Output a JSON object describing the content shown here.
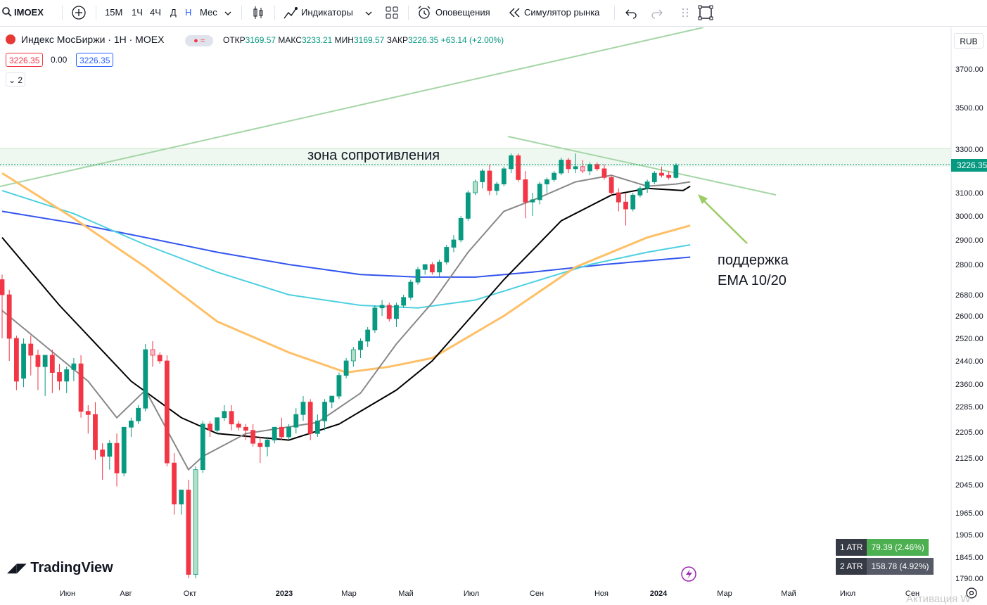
{
  "toolbar": {
    "symbol": "IMOEX",
    "intervals": [
      "15М",
      "1Ч",
      "4Ч",
      "Д",
      "Н",
      "Мес"
    ],
    "active_interval": "Н",
    "indicators_label": "Индикаторы",
    "alerts_label": "Оповещения",
    "replay_label": "Симулятор рынка"
  },
  "legend": {
    "title": "Индекс МосБиржи · 1Н · MOEX",
    "open_label": "ОТКР",
    "open": "3169.57",
    "high_label": "МАКС",
    "high": "3233.21",
    "low_label": "МИН",
    "low": "3169.57",
    "close_label": "ЗАКР",
    "close": "3226.35",
    "change": "+63.14 (+2.00%)",
    "bid": "3226.35",
    "spread": "0.00",
    "ask": "3226.35",
    "indicators_count": "2"
  },
  "currency": "RUB",
  "last_price_label": "3226.35",
  "colors": {
    "up": "#089981",
    "down": "#f23645",
    "up_hollow": "#b2dfc5",
    "ema10": "#888888",
    "ema20": "#000000",
    "ema50": "#ffbf66",
    "ema100": "#4dd0e1",
    "ema200": "#3355ee",
    "trend": "#a5d6a7"
  },
  "annotations": {
    "resistance": "зона сопротивления",
    "support_line1": "поддержка",
    "support_line2": "EMA 10/20"
  },
  "atr": [
    {
      "name": "1 ATR",
      "value": "79.39 (2.46%)"
    },
    {
      "name": "2 ATR",
      "value": "158.78 (4.92%)"
    }
  ],
  "brand": "TradingView",
  "watermark": "Активация W",
  "chart_data": {
    "type": "candlestick",
    "y_ticks": [
      "3700.00",
      "3500.00",
      "3300.00",
      "3100.00",
      "3000.00",
      "2900.00",
      "2800.00",
      "2680.00",
      "2600.00",
      "2520.00",
      "2440.00",
      "2360.00",
      "2285.00",
      "2205.00",
      "2125.00",
      "2045.00",
      "1965.00",
      "1905.00",
      "1845.00",
      "1790.00"
    ],
    "x_ticks": [
      "Июн",
      "Авг",
      "Окт",
      "2023",
      "Мар",
      "Май",
      "Июл",
      "Сен",
      "Ноя",
      "2024",
      "Мар",
      "Май",
      "Июл",
      "Сен"
    ],
    "candles": [
      [
        2740,
        2760,
        2520,
        2680
      ],
      [
        2680,
        2700,
        2440,
        2520
      ],
      [
        2520,
        2530,
        2340,
        2370
      ],
      [
        2380,
        2520,
        2350,
        2500
      ],
      [
        2500,
        2530,
        2390,
        2460
      ],
      [
        2460,
        2480,
        2340,
        2420
      ],
      [
        2420,
        2460,
        2320,
        2460
      ],
      [
        2460,
        2480,
        2330,
        2400
      ],
      [
        2400,
        2430,
        2340,
        2370
      ],
      [
        2370,
        2420,
        2330,
        2410
      ],
      [
        2410,
        2450,
        2370,
        2430
      ],
      [
        2430,
        2460,
        2250,
        2270
      ],
      [
        2270,
        2290,
        2200,
        2260
      ],
      [
        2260,
        2300,
        2120,
        2150
      ],
      [
        2150,
        2170,
        2060,
        2130
      ],
      [
        2130,
        2180,
        2090,
        2170
      ],
      [
        2170,
        2200,
        2040,
        2080
      ],
      [
        2080,
        2220,
        2070,
        2220
      ],
      [
        2220,
        2250,
        2190,
        2240
      ],
      [
        2240,
        2290,
        2230,
        2280
      ],
      [
        2280,
        2500,
        2270,
        2480
      ],
      [
        2480,
        2510,
        2420,
        2460
      ],
      [
        2460,
        2470,
        2430,
        2440
      ],
      [
        2440,
        2460,
        2100,
        2110
      ],
      [
        2110,
        2140,
        1960,
        1990
      ],
      [
        1990,
        2020,
        1960,
        2030
      ],
      [
        2030,
        2060,
        1790,
        1800
      ],
      [
        1800,
        2100,
        1790,
        2090
      ],
      [
        2090,
        2240,
        2080,
        2230
      ],
      [
        2230,
        2240,
        2190,
        2210
      ],
      [
        2210,
        2250,
        2200,
        2250
      ],
      [
        2250,
        2290,
        2240,
        2270
      ],
      [
        2270,
        2290,
        2210,
        2230
      ],
      [
        2230,
        2240,
        2210,
        2220
      ],
      [
        2220,
        2230,
        2180,
        2210
      ],
      [
        2210,
        2230,
        2160,
        2170
      ],
      [
        2170,
        2190,
        2110,
        2160
      ],
      [
        2160,
        2190,
        2130,
        2180
      ],
      [
        2180,
        2220,
        2170,
        2220
      ],
      [
        2220,
        2250,
        2180,
        2190
      ],
      [
        2190,
        2230,
        2180,
        2220
      ],
      [
        2220,
        2280,
        2200,
        2260
      ],
      [
        2260,
        2320,
        2240,
        2300
      ],
      [
        2300,
        2310,
        2180,
        2200
      ],
      [
        2200,
        2260,
        2190,
        2240
      ],
      [
        2240,
        2310,
        2210,
        2300
      ],
      [
        2300,
        2320,
        2280,
        2320
      ],
      [
        2320,
        2400,
        2310,
        2390
      ],
      [
        2390,
        2450,
        2380,
        2440
      ],
      [
        2440,
        2490,
        2420,
        2480
      ],
      [
        2480,
        2520,
        2450,
        2510
      ],
      [
        2510,
        2560,
        2490,
        2550
      ],
      [
        2550,
        2640,
        2540,
        2630
      ],
      [
        2630,
        2660,
        2600,
        2640
      ],
      [
        2640,
        2650,
        2580,
        2590
      ],
      [
        2590,
        2650,
        2560,
        2640
      ],
      [
        2640,
        2680,
        2630,
        2670
      ],
      [
        2670,
        2740,
        2660,
        2730
      ],
      [
        2730,
        2790,
        2720,
        2780
      ],
      [
        2780,
        2800,
        2760,
        2800
      ],
      [
        2800,
        2810,
        2760,
        2770
      ],
      [
        2770,
        2820,
        2750,
        2810
      ],
      [
        2810,
        2880,
        2800,
        2870
      ],
      [
        2870,
        2920,
        2850,
        2900
      ],
      [
        2900,
        3000,
        2890,
        2990
      ],
      [
        2990,
        3110,
        2980,
        3100
      ],
      [
        3100,
        3160,
        3090,
        3150
      ],
      [
        3150,
        3210,
        3120,
        3200
      ],
      [
        3200,
        3230,
        3090,
        3110
      ],
      [
        3110,
        3150,
        3090,
        3140
      ],
      [
        3140,
        3220,
        3130,
        3210
      ],
      [
        3210,
        3280,
        3190,
        3270
      ],
      [
        3270,
        3280,
        3150,
        3160
      ],
      [
        3160,
        3200,
        2990,
        3060
      ],
      [
        3060,
        3100,
        3000,
        3070
      ],
      [
        3070,
        3150,
        3050,
        3140
      ],
      [
        3140,
        3170,
        3100,
        3160
      ],
      [
        3160,
        3200,
        3150,
        3190
      ],
      [
        3190,
        3260,
        3180,
        3250
      ],
      [
        3250,
        3260,
        3190,
        3210
      ],
      [
        3210,
        3280,
        3190,
        3220
      ],
      [
        3220,
        3250,
        3190,
        3200
      ],
      [
        3200,
        3240,
        3180,
        3230
      ],
      [
        3230,
        3240,
        3200,
        3210
      ],
      [
        3210,
        3230,
        3160,
        3170
      ],
      [
        3170,
        3180,
        3090,
        3100
      ],
      [
        3100,
        3120,
        3020,
        3060
      ],
      [
        3060,
        3100,
        2960,
        3030
      ],
      [
        3030,
        3100,
        3020,
        3090
      ],
      [
        3090,
        3130,
        3080,
        3120
      ],
      [
        3120,
        3160,
        3100,
        3150
      ],
      [
        3150,
        3200,
        3140,
        3190
      ],
      [
        3190,
        3220,
        3170,
        3180
      ],
      [
        3180,
        3200,
        3160,
        3170
      ],
      [
        3170,
        3235,
        3165,
        3226
      ]
    ],
    "ema10": [
      [
        0,
        2620
      ],
      [
        12,
        2370
      ],
      [
        16,
        2250
      ],
      [
        20,
        2340
      ],
      [
        26,
        2090
      ],
      [
        28,
        2130
      ],
      [
        34,
        2200
      ],
      [
        44,
        2235
      ],
      [
        50,
        2330
      ],
      [
        55,
        2500
      ],
      [
        60,
        2650
      ],
      [
        65,
        2850
      ],
      [
        70,
        3020
      ],
      [
        75,
        3080
      ],
      [
        80,
        3150
      ],
      [
        85,
        3180
      ],
      [
        90,
        3130
      ],
      [
        94,
        3140
      ],
      [
        96,
        3150
      ]
    ],
    "ema20": [
      [
        0,
        2910
      ],
      [
        8,
        2640
      ],
      [
        18,
        2370
      ],
      [
        25,
        2250
      ],
      [
        30,
        2200
      ],
      [
        40,
        2180
      ],
      [
        47,
        2230
      ],
      [
        55,
        2340
      ],
      [
        60,
        2440
      ],
      [
        70,
        2740
      ],
      [
        78,
        2980
      ],
      [
        85,
        3090
      ],
      [
        90,
        3120
      ],
      [
        95,
        3110
      ],
      [
        96,
        3130
      ]
    ],
    "ema50": [
      [
        0,
        3190
      ],
      [
        10,
        2990
      ],
      [
        20,
        2790
      ],
      [
        30,
        2580
      ],
      [
        40,
        2470
      ],
      [
        48,
        2400
      ],
      [
        54,
        2420
      ],
      [
        60,
        2450
      ],
      [
        70,
        2600
      ],
      [
        80,
        2790
      ],
      [
        90,
        2910
      ],
      [
        96,
        2960
      ]
    ],
    "ema100": [
      [
        0,
        3110
      ],
      [
        10,
        3010
      ],
      [
        20,
        2880
      ],
      [
        30,
        2770
      ],
      [
        40,
        2680
      ],
      [
        50,
        2640
      ],
      [
        58,
        2630
      ],
      [
        66,
        2660
      ],
      [
        74,
        2730
      ],
      [
        82,
        2800
      ],
      [
        90,
        2850
      ],
      [
        96,
        2880
      ]
    ],
    "ema200": [
      [
        0,
        3020
      ],
      [
        10,
        2970
      ],
      [
        20,
        2910
      ],
      [
        30,
        2850
      ],
      [
        40,
        2800
      ],
      [
        50,
        2760
      ],
      [
        58,
        2750
      ],
      [
        66,
        2750
      ],
      [
        74,
        2770
      ],
      [
        84,
        2800
      ],
      [
        96,
        2830
      ]
    ]
  }
}
